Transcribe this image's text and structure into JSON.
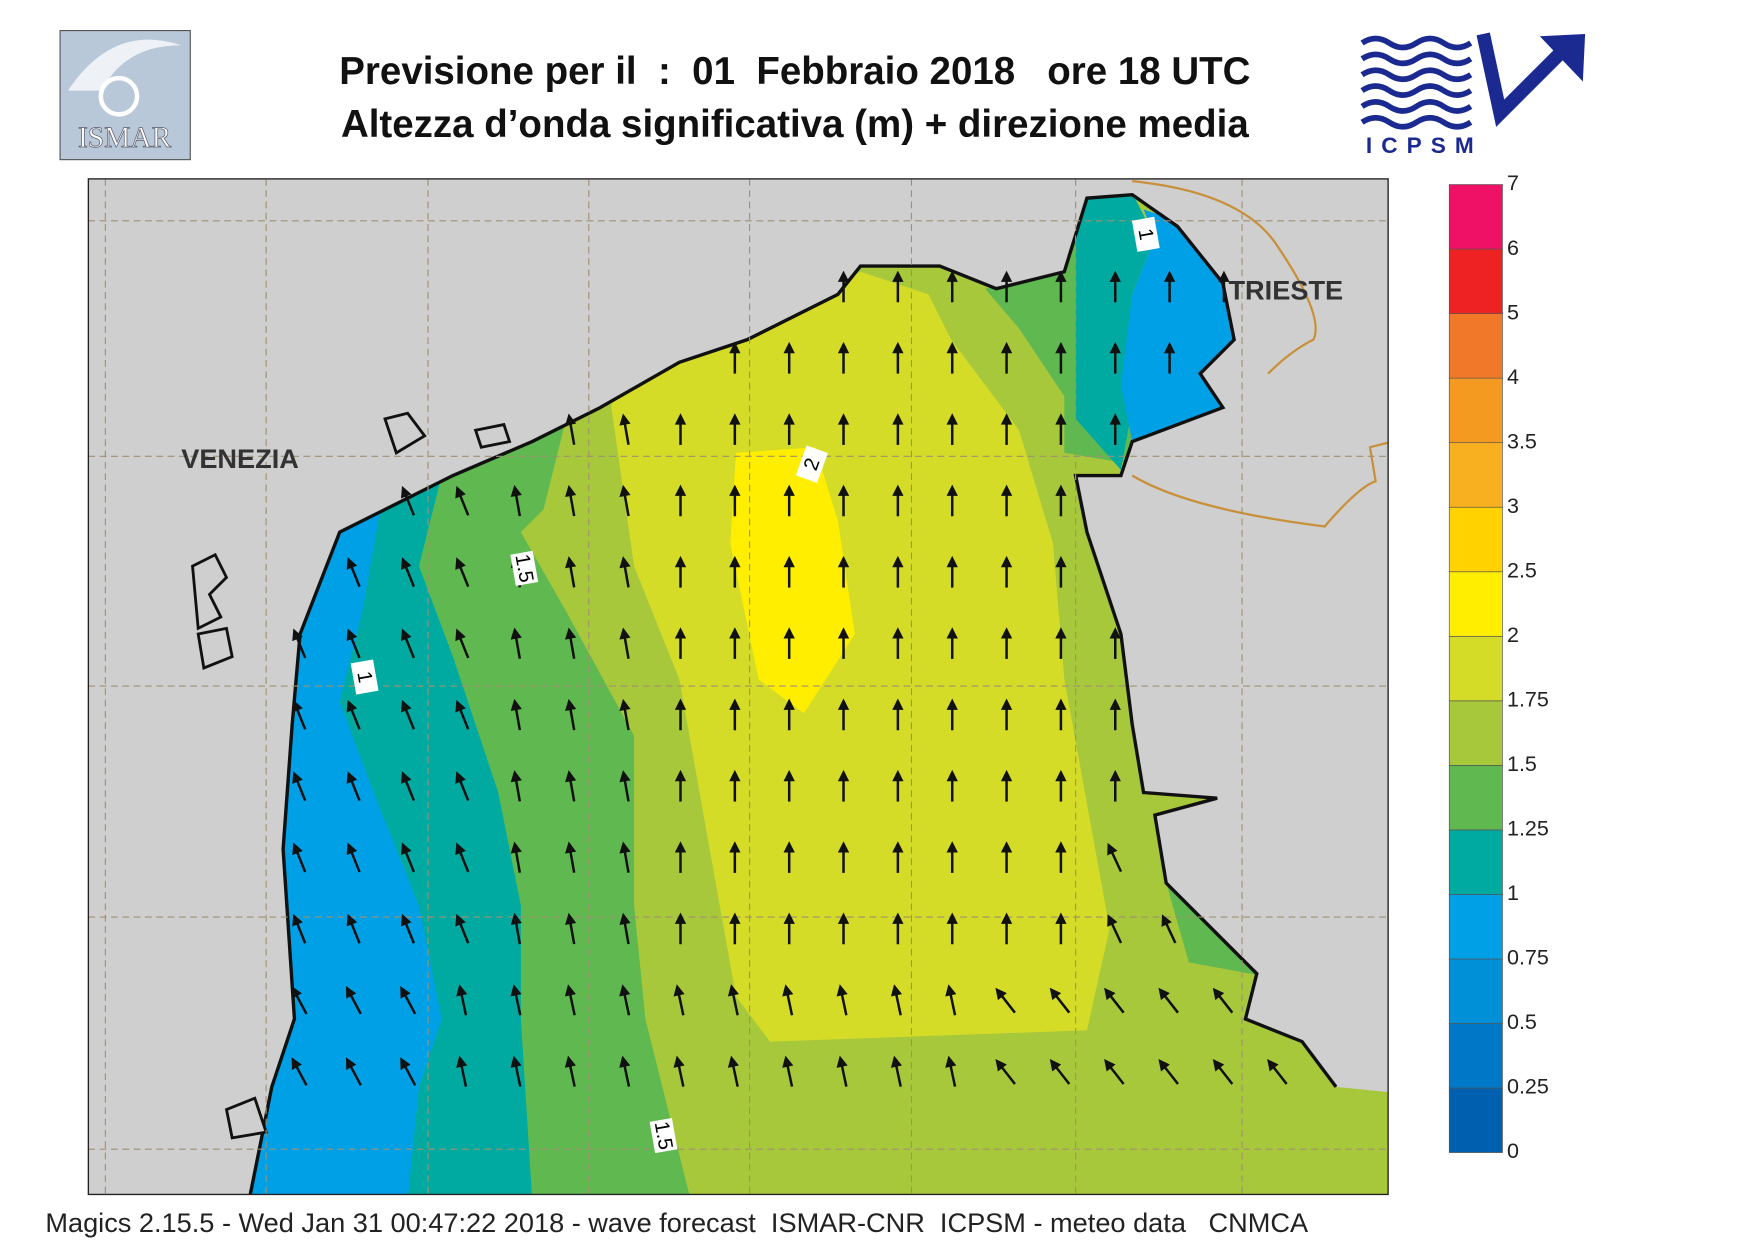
{
  "header": {
    "title_line1": "Previsione per il  :  01  Febbraio 2018   ore 18 UTC",
    "title_line2": "Altezza d’onda significativa (m) + direzione media",
    "logo_left": "ISMAR",
    "logo_right": "ICPSM"
  },
  "map": {
    "places": [
      "VENEZIA",
      "TRIESTE"
    ],
    "contour_labels": [
      2,
      1.5,
      1,
      1,
      1.5
    ]
  },
  "colorbar": {
    "ticks": [
      0,
      0.25,
      0.5,
      0.75,
      1,
      1.25,
      1.5,
      1.75,
      2,
      2.5,
      3,
      3.5,
      4,
      5,
      6,
      7
    ],
    "colors": [
      "#0060b0",
      "#0078c8",
      "#0090d8",
      "#00a0e6",
      "#00aaa0",
      "#60b850",
      "#a8c83c",
      "#d4dc28",
      "#ffee00",
      "#ffd200",
      "#f8b020",
      "#f59a20",
      "#f07828",
      "#ee2222",
      "#ee1166"
    ]
  },
  "footer": "Magics 2.15.5 - Wed Jan 31 00:47:22 2018 - wave forecast  ISMAR-CNR  ICPSM - meteo data   CNMCA"
}
